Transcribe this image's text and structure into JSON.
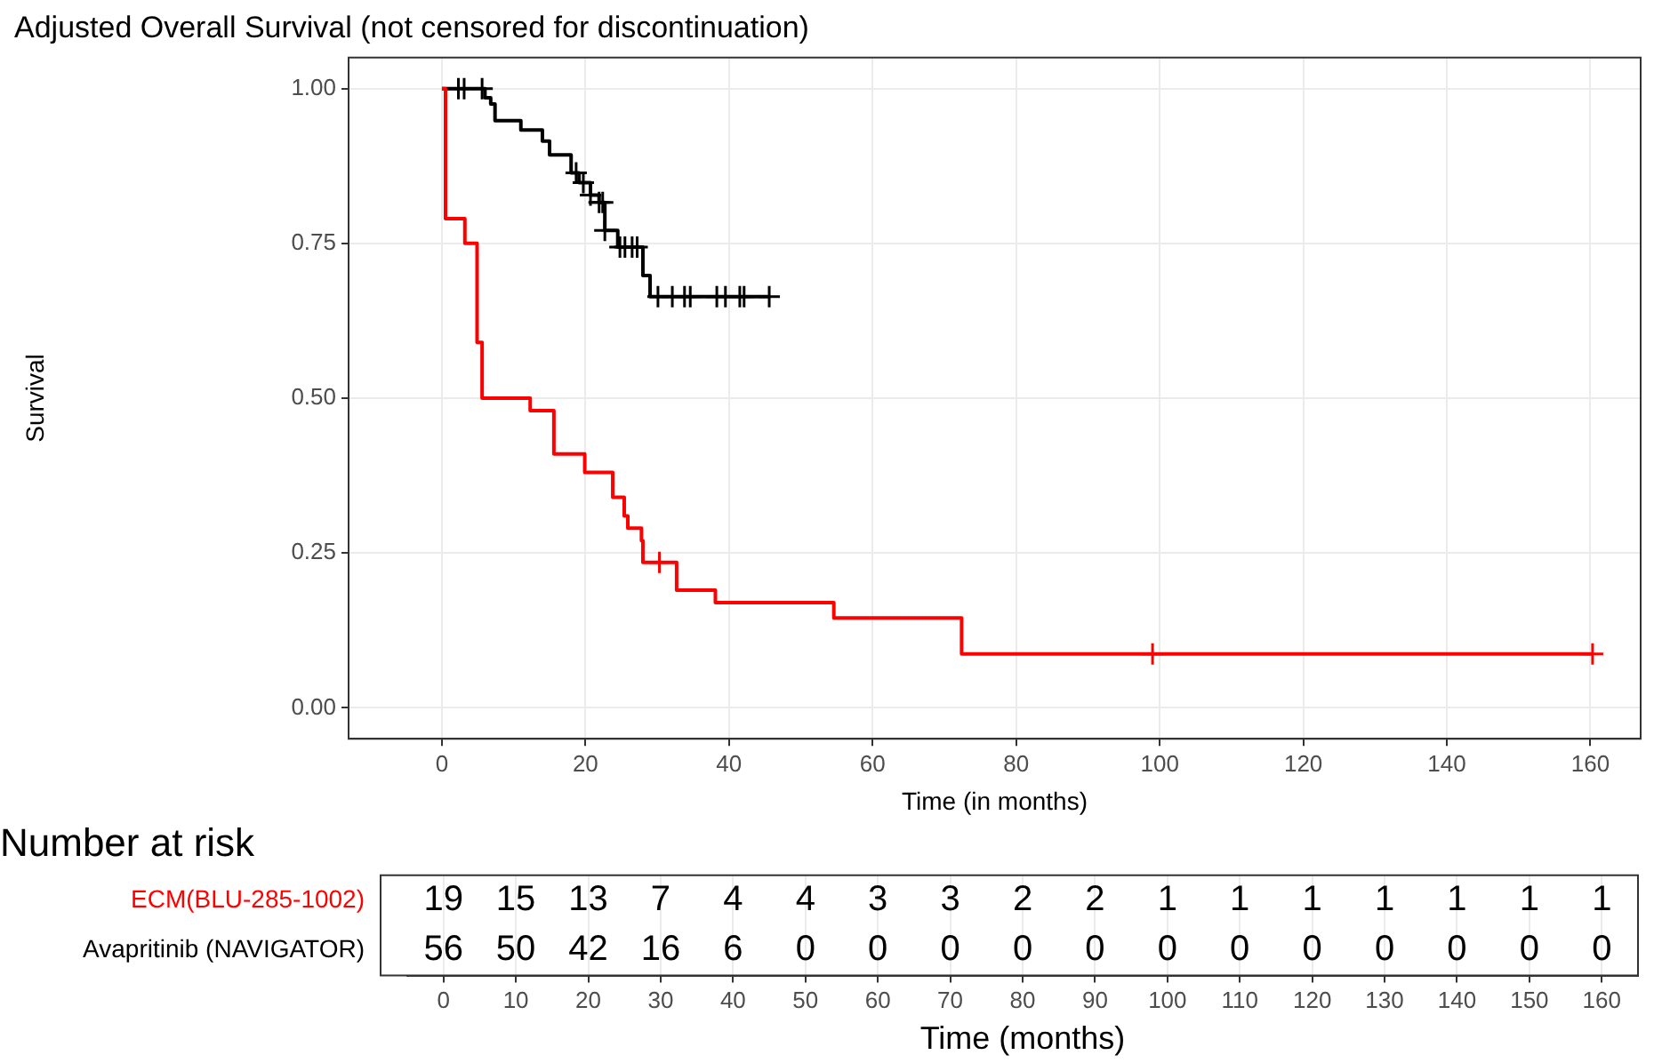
{
  "chart_data": [
    {
      "type": "step",
      "title": "Adjusted Overall Survival (not censored for discontinuation)",
      "xlabel": "Time (in months)",
      "ylabel": "Survival",
      "xlim": [
        -13,
        167
      ],
      "xticks": [
        0,
        20,
        40,
        60,
        80,
        100,
        120,
        140,
        160
      ],
      "ylim": [
        -0.05,
        1.05
      ],
      "yticks": [
        {
          "value": 0,
          "label": "0.00"
        },
        {
          "value": 0.25,
          "label": "0.25"
        },
        {
          "value": 0.5,
          "label": "0.50"
        },
        {
          "value": 0.75,
          "label": "0.75"
        },
        {
          "value": 1,
          "label": "1.00"
        }
      ],
      "grid": true,
      "legend": false,
      "line_style": "solid",
      "series": [
        {
          "type": "step",
          "color": "#ff0000",
          "marker": "none",
          "x": [
            0,
            0.5,
            3.2,
            4.9,
            5.6,
            12.3,
            15.6,
            19.9,
            23.8,
            25.4,
            25.9,
            27.8,
            28.0,
            32.7,
            38.1,
            54.6,
            72.4,
            160.3
          ],
          "values": [
            1.0,
            0.79,
            0.75,
            0.59,
            0.5,
            0.48,
            0.41,
            0.38,
            0.34,
            0.31,
            0.29,
            0.27,
            0.235,
            0.19,
            0.17,
            0.145,
            0.087,
            0.087
          ]
        },
        {
          "type": "step",
          "color": "#000000",
          "marker": "none",
          "x": [
            0,
            6.0,
            6.8,
            7.4,
            11.0,
            14.0,
            15.0,
            18.0,
            19.1,
            20.7,
            21.9,
            22.7,
            24.5,
            28.0,
            29.0,
            45.6
          ],
          "values": [
            1.0,
            0.985,
            0.975,
            0.948,
            0.933,
            0.915,
            0.893,
            0.864,
            0.848,
            0.828,
            0.816,
            0.771,
            0.744,
            0.698,
            0.664,
            0.664
          ]
        },
        {
          "type": "scatter",
          "color": "#ff0000",
          "marker": "cross",
          "x": [
            30.3,
            99,
            160.3
          ],
          "values": [
            0.235,
            0.087,
            0.087
          ]
        },
        {
          "type": "scatter",
          "color": "#000000",
          "marker": "cross",
          "x": [
            2.3,
            3.1,
            5.6,
            18.7,
            19.7,
            20.7,
            21.9,
            22.4,
            22.7,
            24.8,
            25.5,
            26.5,
            27.2,
            30.1,
            32.1,
            33.8,
            34.6,
            38.3,
            39.5,
            41.5,
            42.1,
            45.6
          ],
          "values": [
            1.0,
            1.0,
            1.0,
            0.864,
            0.848,
            0.828,
            0.816,
            0.816,
            0.771,
            0.744,
            0.744,
            0.744,
            0.744,
            0.664,
            0.664,
            0.664,
            0.664,
            0.664,
            0.664,
            0.664,
            0.664,
            0.664
          ]
        }
      ]
    },
    {
      "type": "heatmap",
      "title": "Number at risk",
      "xlabel": "Time (months)",
      "grid": "x",
      "data_labels": true,
      "categories": [
        "0",
        "10",
        "20",
        "30",
        "40",
        "50",
        "60",
        "70",
        "80",
        "90",
        "100",
        "110",
        "120",
        "130",
        "140",
        "150",
        "160"
      ],
      "y_categories": [
        "ECM(BLU-285-1002)",
        "Avapritinib (NAVIGATOR)"
      ],
      "cells": [
        [
          19,
          15,
          13,
          7,
          4,
          4,
          3,
          3,
          2,
          2,
          1,
          1,
          1,
          1,
          1,
          1,
          1
        ],
        [
          56,
          50,
          42,
          16,
          6,
          0,
          0,
          0,
          0,
          0,
          0,
          0,
          0,
          0,
          0,
          0,
          0
        ]
      ]
    }
  ]
}
